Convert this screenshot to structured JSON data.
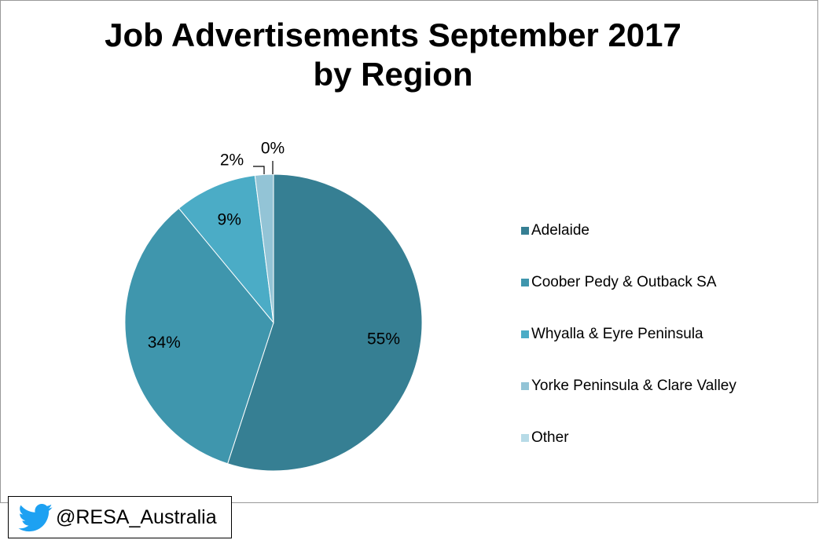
{
  "chart_data": {
    "type": "pie",
    "title": "Job Advertisements September 2017 by Region",
    "categories": [
      "Adelaide",
      "Coober Pedy & Outback SA",
      "Whyalla & Eyre Peninsula",
      "Yorke Peninsula & Clare Valley",
      "Other"
    ],
    "values": [
      55,
      34,
      9,
      2,
      0
    ],
    "value_labels": [
      "55%",
      "34%",
      "9%",
      "2%",
      "0%"
    ],
    "colors": [
      "#367f93",
      "#3f96ad",
      "#4bacc6",
      "#93c4d6",
      "#b7dbe7"
    ],
    "legend": "right",
    "source": "@RESA_Australia"
  }
}
